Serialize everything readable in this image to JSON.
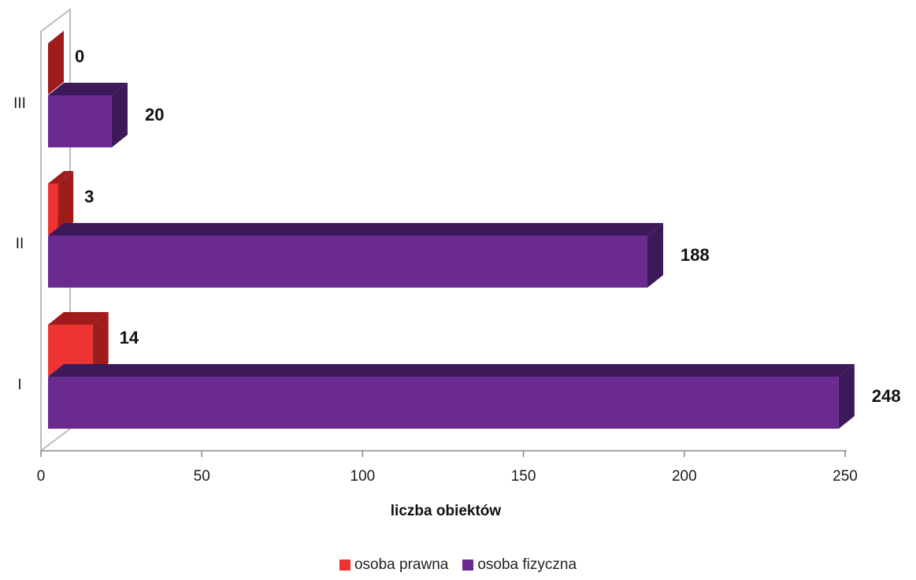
{
  "chart_data": {
    "type": "bar",
    "orientation": "horizontal",
    "categories": [
      "I",
      "II",
      "III"
    ],
    "series": [
      {
        "name": "osoba prawna",
        "values": [
          14,
          3,
          0
        ],
        "color": "#ee3333",
        "side_color": "#a01c1c"
      },
      {
        "name": "osoba fizyczna",
        "values": [
          248,
          188,
          20
        ],
        "color": "#6a2a90",
        "side_color": "#3c1a5a"
      }
    ],
    "xlabel": "liczba obiektów",
    "xlim": [
      0,
      250
    ],
    "xticks": [
      0,
      50,
      100,
      150,
      200,
      250
    ],
    "legend_position": "bottom",
    "three_d": true
  }
}
